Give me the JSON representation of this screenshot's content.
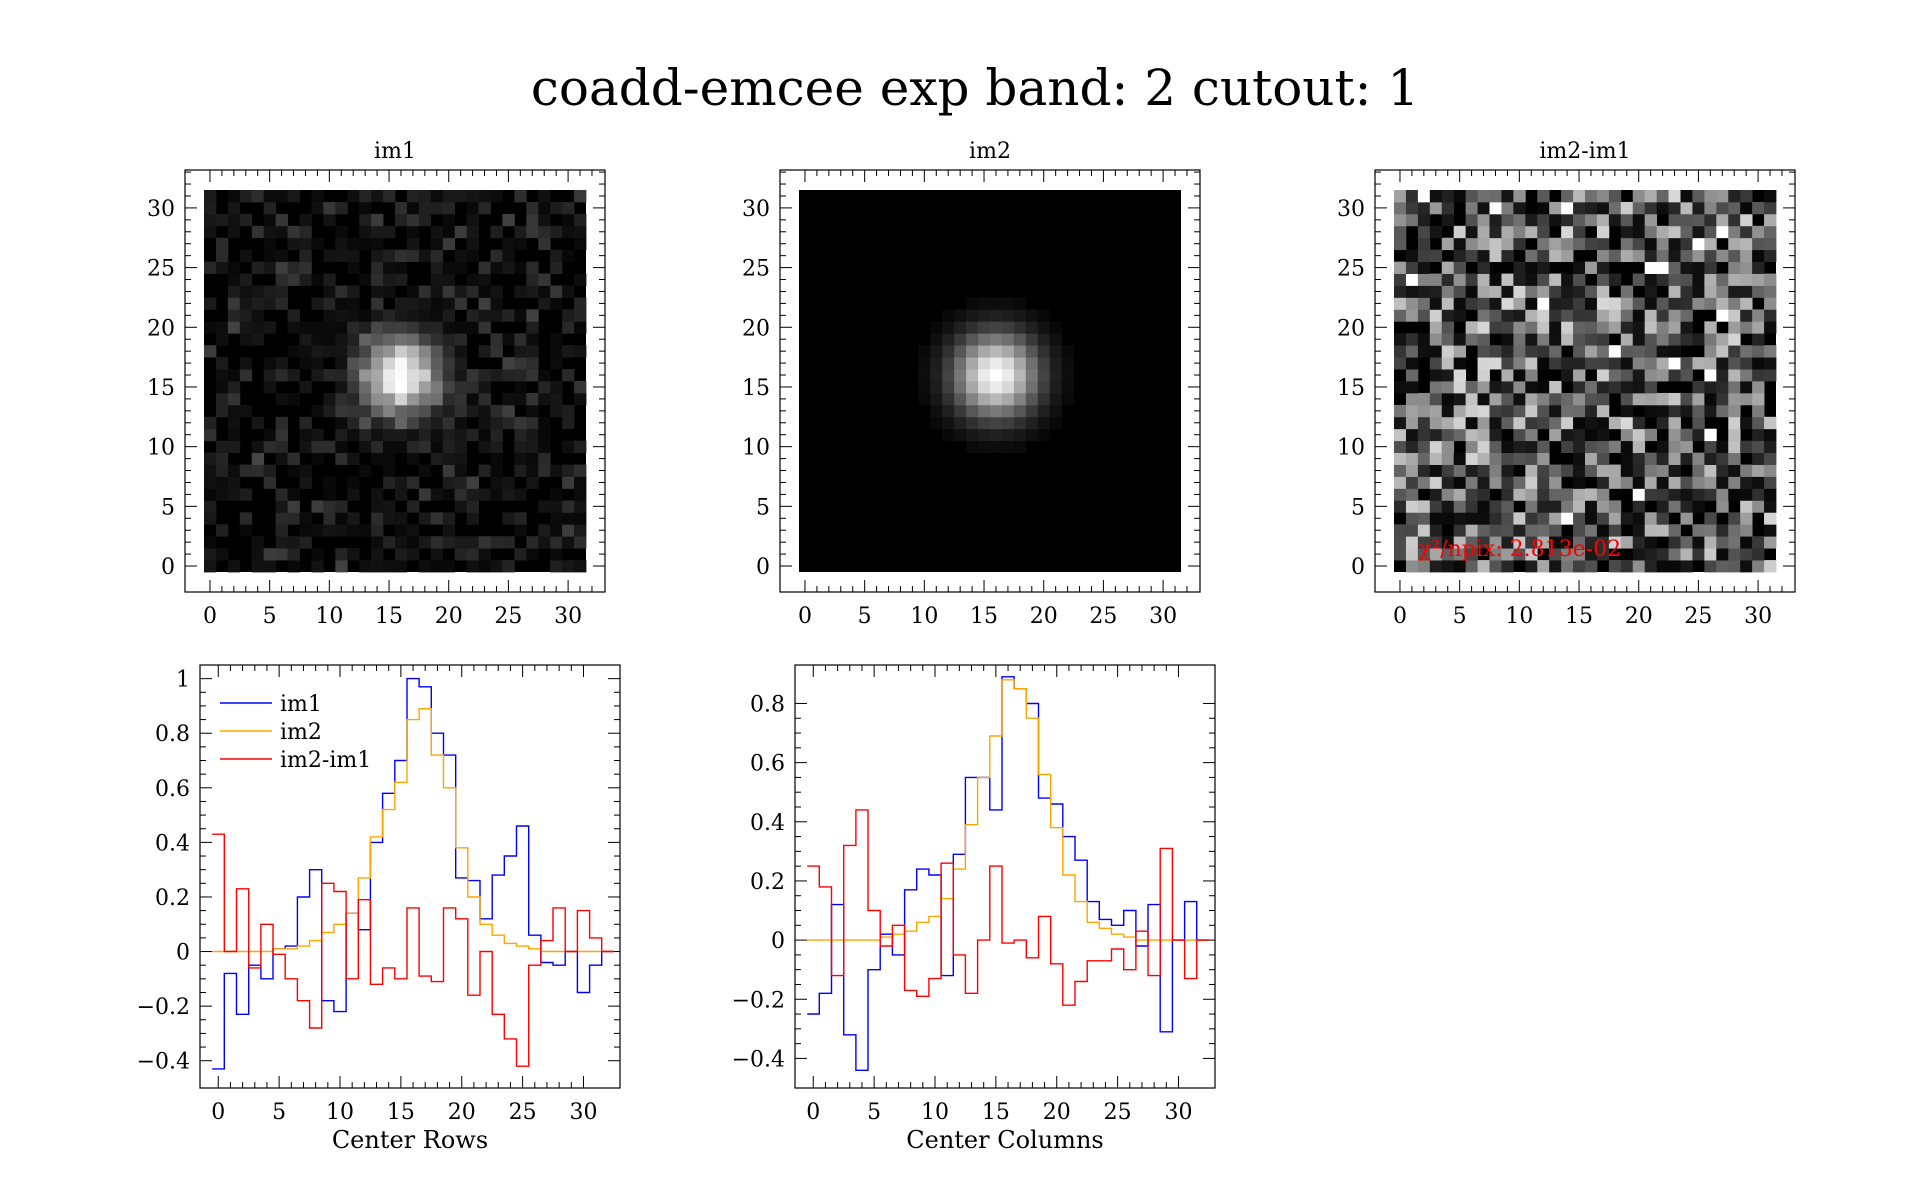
{
  "figure_title": "coadd-emcee exp band: 2 cutout: 1",
  "chart_data": [
    {
      "type": "heatmap",
      "panel": "im1",
      "title": "im1",
      "xlim": [
        -1,
        32
      ],
      "ylim": [
        -1,
        32
      ],
      "xticks": [
        0,
        5,
        10,
        15,
        20,
        25,
        30
      ],
      "yticks": [
        0,
        5,
        10,
        15,
        20,
        25,
        30
      ],
      "size": 32,
      "colormap": "grayscale",
      "peak_center": [
        16.5,
        16.5
      ],
      "note_visible": "noisy star image with bright core near (16,17)"
    },
    {
      "type": "heatmap",
      "panel": "im2",
      "title": "im2",
      "xlim": [
        -1,
        32
      ],
      "ylim": [
        -1,
        32
      ],
      "xticks": [
        0,
        5,
        10,
        15,
        20,
        25,
        30
      ],
      "yticks": [
        0,
        5,
        10,
        15,
        20,
        25,
        30
      ],
      "size": 32,
      "colormap": "grayscale",
      "peak_center": [
        16.5,
        16.5
      ]
    },
    {
      "type": "heatmap",
      "panel": "im2-im1",
      "title": "im2-im1",
      "xlim": [
        -1,
        32
      ],
      "ylim": [
        -1,
        32
      ],
      "xticks": [
        0,
        5,
        10,
        15,
        20,
        25,
        30
      ],
      "yticks": [
        0,
        5,
        10,
        15,
        20,
        25,
        30
      ],
      "size": 32,
      "colormap": "grayscale",
      "annotation": "χ²/npix: 2.813e-02",
      "annotation_color": "#ff0000"
    },
    {
      "type": "line",
      "panel": "rows",
      "step": true,
      "xlabel": "Center Rows",
      "ylabel": "",
      "xlim": [
        -1.5,
        33
      ],
      "ylim": [
        -0.5,
        1.05
      ],
      "xticks": [
        0,
        5,
        10,
        15,
        20,
        25,
        30
      ],
      "yticks": [
        -0.4,
        -0.2,
        0,
        0.2,
        0.4,
        0.6,
        0.8,
        1
      ],
      "ytick_labels": [
        "−0.4",
        "−0.2",
        "0",
        "0.2",
        "0.4",
        "0.6",
        "0.8",
        "1"
      ],
      "legend_position": "top-left",
      "x": [
        0,
        1,
        2,
        3,
        4,
        5,
        6,
        7,
        8,
        9,
        10,
        11,
        12,
        13,
        14,
        15,
        16,
        17,
        18,
        19,
        20,
        21,
        22,
        23,
        24,
        25,
        26,
        27,
        28,
        29,
        30,
        31,
        32
      ],
      "series": [
        {
          "name": "im1",
          "color": "#0000ff",
          "values": [
            -0.43,
            -0.08,
            -0.23,
            -0.05,
            -0.1,
            0.01,
            0.02,
            0.2,
            0.3,
            -0.18,
            -0.22,
            0.14,
            0.08,
            0.4,
            0.58,
            0.7,
            1.0,
            0.97,
            0.8,
            0.72,
            0.27,
            0.26,
            0.12,
            0.28,
            0.35,
            0.46,
            0.06,
            -0.04,
            -0.05,
            0.0,
            -0.15,
            -0.05,
            0.0
          ]
        },
        {
          "name": "im2",
          "color": "#ffa500",
          "values": [
            0.0,
            0.0,
            0.0,
            0.0,
            0.0,
            0.01,
            0.01,
            0.02,
            0.04,
            0.07,
            0.1,
            0.14,
            0.27,
            0.42,
            0.52,
            0.62,
            0.85,
            0.89,
            0.72,
            0.6,
            0.38,
            0.2,
            0.1,
            0.06,
            0.03,
            0.02,
            0.01,
            0.0,
            0.0,
            0.0,
            0.0,
            0.0,
            0.0
          ]
        },
        {
          "name": "im2-im1",
          "color": "#ff0000",
          "values": [
            0.43,
            0.0,
            0.23,
            -0.06,
            0.1,
            -0.01,
            -0.1,
            -0.18,
            -0.28,
            0.25,
            0.22,
            -0.1,
            0.19,
            -0.12,
            -0.06,
            -0.1,
            0.16,
            -0.09,
            -0.11,
            0.16,
            0.12,
            -0.16,
            0.0,
            -0.23,
            -0.32,
            -0.42,
            -0.05,
            0.04,
            0.16,
            0.0,
            0.15,
            0.05,
            0.0
          ]
        }
      ]
    },
    {
      "type": "line",
      "panel": "columns",
      "step": true,
      "xlabel": "Center Columns",
      "ylabel": "",
      "xlim": [
        -1.5,
        33
      ],
      "ylim": [
        -0.5,
        0.93
      ],
      "xticks": [
        0,
        5,
        10,
        15,
        20,
        25,
        30
      ],
      "yticks": [
        -0.4,
        -0.2,
        0,
        0.2,
        0.4,
        0.6,
        0.8
      ],
      "ytick_labels": [
        "−0.4",
        "−0.2",
        "0",
        "0.2",
        "0.4",
        "0.6",
        "0.8"
      ],
      "x": [
        0,
        1,
        2,
        3,
        4,
        5,
        6,
        7,
        8,
        9,
        10,
        11,
        12,
        13,
        14,
        15,
        16,
        17,
        18,
        19,
        20,
        21,
        22,
        23,
        24,
        25,
        26,
        27,
        28,
        29,
        30,
        31,
        32
      ],
      "series": [
        {
          "name": "im1",
          "color": "#0000ff",
          "values": [
            -0.25,
            -0.18,
            0.12,
            -0.32,
            -0.44,
            -0.1,
            0.02,
            -0.05,
            0.17,
            0.24,
            0.22,
            -0.12,
            0.29,
            0.55,
            0.55,
            0.44,
            0.89,
            0.85,
            0.8,
            0.48,
            0.46,
            0.35,
            0.27,
            0.13,
            0.07,
            0.05,
            0.1,
            -0.02,
            0.12,
            -0.31,
            0.0,
            0.13,
            0.0
          ]
        },
        {
          "name": "im2",
          "color": "#ffa500",
          "values": [
            0.0,
            0.0,
            0.0,
            0.0,
            0.0,
            0.0,
            0.01,
            0.02,
            0.03,
            0.06,
            0.08,
            0.14,
            0.24,
            0.39,
            0.55,
            0.69,
            0.88,
            0.85,
            0.75,
            0.56,
            0.38,
            0.22,
            0.13,
            0.06,
            0.04,
            0.02,
            0.01,
            0.0,
            0.0,
            0.0,
            0.0,
            0.0,
            0.0
          ]
        },
        {
          "name": "im2-im1",
          "color": "#ff0000",
          "values": [
            0.25,
            0.18,
            -0.12,
            0.32,
            0.44,
            0.1,
            -0.02,
            0.05,
            -0.17,
            -0.19,
            -0.13,
            0.26,
            -0.05,
            -0.18,
            0.0,
            0.25,
            -0.01,
            0.0,
            -0.06,
            0.08,
            -0.08,
            -0.22,
            -0.14,
            -0.07,
            -0.07,
            -0.03,
            -0.1,
            0.03,
            -0.12,
            0.31,
            0.0,
            -0.13,
            0.0
          ]
        }
      ]
    }
  ]
}
